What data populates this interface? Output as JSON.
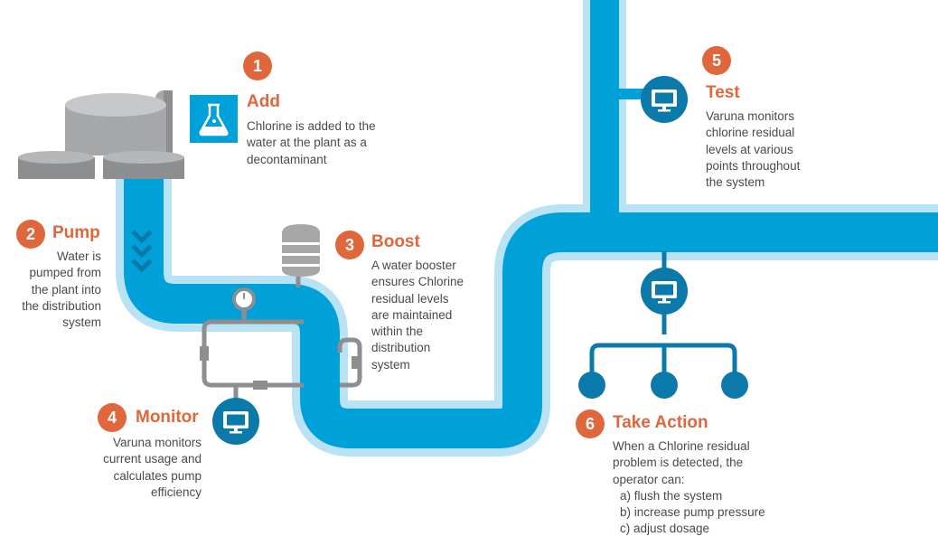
{
  "steps": [
    {
      "number": "1",
      "title": "Add",
      "lines": [
        "Chlorine is added to the",
        "water at the plant as a",
        "decontaminant"
      ]
    },
    {
      "number": "2",
      "title": "Pump",
      "lines": [
        "Water is",
        "pumped from",
        "the plant into",
        "the distribution",
        "system"
      ]
    },
    {
      "number": "3",
      "title": "Boost",
      "lines": [
        "A water booster",
        "ensures Chlorine",
        "residual levels",
        "are maintained",
        "within the",
        "distribution",
        "system"
      ]
    },
    {
      "number": "4",
      "title": "Monitor",
      "lines": [
        "Varuna monitors",
        "current usage and",
        "calculates pump",
        "efficiency"
      ]
    },
    {
      "number": "5",
      "title": "Test",
      "lines": [
        "Varuna monitors",
        "chlorine residual",
        "levels at various",
        "points throughout",
        "the system"
      ]
    },
    {
      "number": "6",
      "title": "Take Action",
      "lines": [
        "When a Chlorine residual",
        "problem is detected, the",
        "operator can:"
      ],
      "actions": [
        "a) flush the system",
        "b) increase pump pressure",
        "c) adjust dosage"
      ]
    }
  ],
  "colors": {
    "pipe": "#00a0d8",
    "pipe_outline": "#b9e2f4",
    "accent": "#e0663b",
    "node": "#0b79a9",
    "equipment": "#8d8e90",
    "text": "#4a4a4a"
  },
  "icons": [
    "chlorine-flask-icon",
    "monitor-icon",
    "pressure-gauge-icon",
    "flow-chevrons-icon"
  ]
}
